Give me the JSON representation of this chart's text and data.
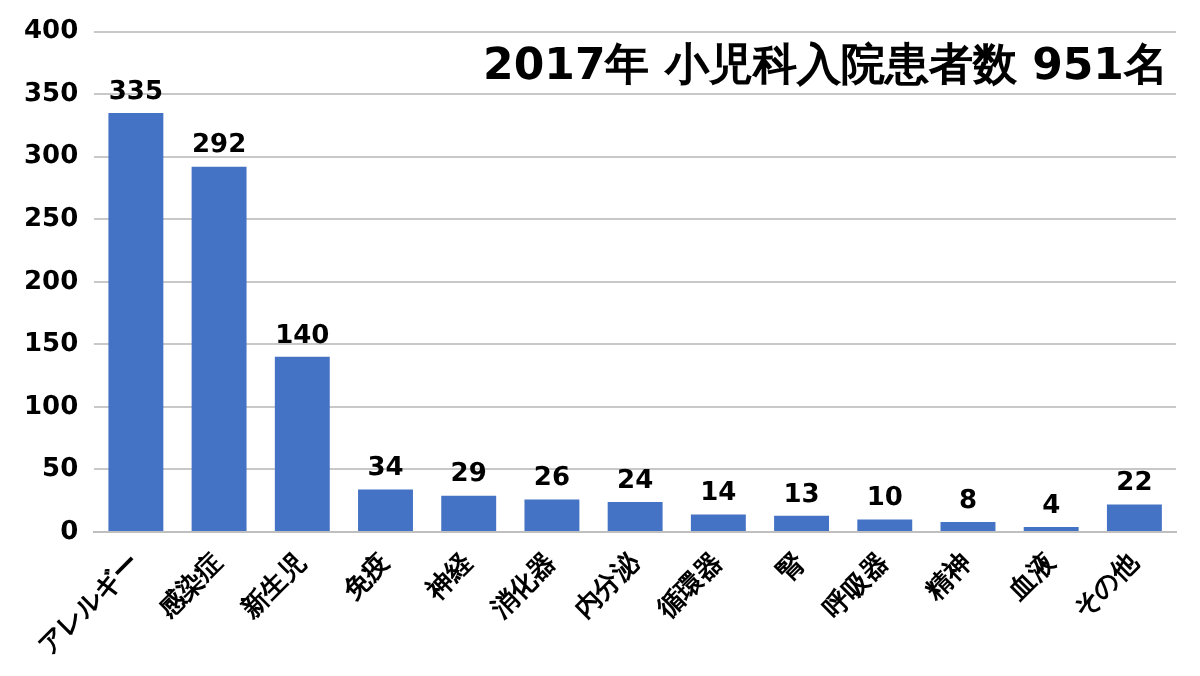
{
  "chart_data": {
    "type": "bar",
    "title": "2017年 小児科入院患者数 951名",
    "categories": [
      "アレルギー",
      "感染症",
      "新生児",
      "免疫",
      "神経",
      "消化器",
      "内分泌",
      "循環器",
      "腎",
      "呼吸器",
      "精神",
      "血液",
      "その他"
    ],
    "values": [
      335,
      292,
      140,
      34,
      29,
      26,
      24,
      14,
      13,
      10,
      8,
      4,
      22
    ],
    "color": "#4472c4",
    "ylim": [
      0,
      400
    ],
    "yticks": [
      0,
      50,
      100,
      150,
      200,
      250,
      300,
      350,
      400
    ],
    "grid": "y",
    "data_labels": true
  }
}
